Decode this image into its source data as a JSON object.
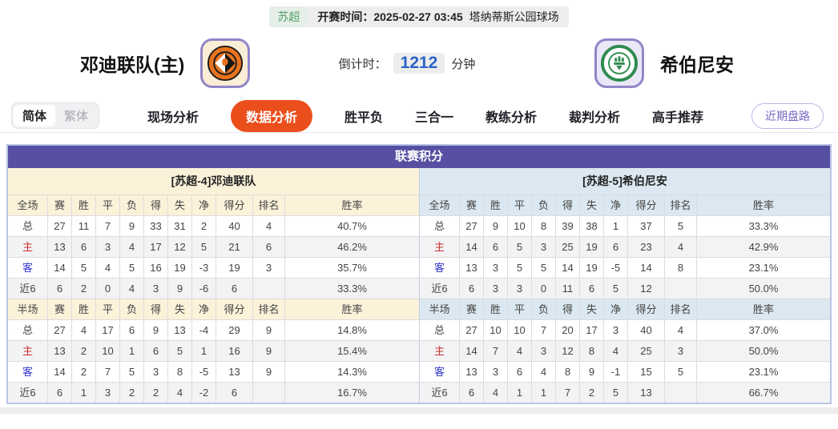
{
  "meta_bar": {
    "league": "苏超",
    "kickoff_label": "开赛时间：",
    "kickoff_time": "2025-02-27 03:45",
    "venue": "塔纳蒂斯公园球场"
  },
  "header": {
    "home_team": "邓迪联队(主)",
    "away_team": "希伯尼安",
    "countdown_label": "倒计时：",
    "countdown_value": "1212",
    "countdown_unit": "分钟"
  },
  "nav": {
    "lang_simplified": "简体",
    "lang_traditional": "繁体",
    "tabs": [
      {
        "label": "现场分析",
        "active": false
      },
      {
        "label": "数据分析",
        "active": true
      },
      {
        "label": "胜平负",
        "active": false
      },
      {
        "label": "三合一",
        "active": false
      },
      {
        "label": "教练分析",
        "active": false
      },
      {
        "label": "裁判分析",
        "active": false
      },
      {
        "label": "高手推荐",
        "active": false
      }
    ],
    "recent_button": "近期盘路"
  },
  "table": {
    "title": "联赛积分",
    "columns_full": [
      "全场",
      "赛",
      "胜",
      "平",
      "负",
      "得",
      "失",
      "净",
      "得分",
      "排名",
      "胜率"
    ],
    "columns_half": [
      "半场",
      "赛",
      "胜",
      "平",
      "负",
      "得",
      "失",
      "净",
      "得分",
      "排名",
      "胜率"
    ],
    "home": {
      "header": "[苏超-4]邓迪联队",
      "full": [
        {
          "label": "总",
          "type": "total",
          "cells": [
            "27",
            "11",
            "7",
            "9",
            "33",
            "31",
            "2",
            "40",
            "4",
            "40.7%"
          ]
        },
        {
          "label": "主",
          "type": "home",
          "cells": [
            "13",
            "6",
            "3",
            "4",
            "17",
            "12",
            "5",
            "21",
            "6",
            "46.2%"
          ]
        },
        {
          "label": "客",
          "type": "away",
          "cells": [
            "14",
            "5",
            "4",
            "5",
            "16",
            "19",
            "-3",
            "19",
            "3",
            "35.7%"
          ]
        },
        {
          "label": "近6",
          "type": "recent",
          "cells": [
            "6",
            "2",
            "0",
            "4",
            "3",
            "9",
            "-6",
            "6",
            "",
            "33.3%"
          ]
        }
      ],
      "half": [
        {
          "label": "总",
          "type": "total",
          "cells": [
            "27",
            "4",
            "17",
            "6",
            "9",
            "13",
            "-4",
            "29",
            "9",
            "14.8%"
          ]
        },
        {
          "label": "主",
          "type": "home",
          "cells": [
            "13",
            "2",
            "10",
            "1",
            "6",
            "5",
            "1",
            "16",
            "9",
            "15.4%"
          ]
        },
        {
          "label": "客",
          "type": "away",
          "cells": [
            "14",
            "2",
            "7",
            "5",
            "3",
            "8",
            "-5",
            "13",
            "9",
            "14.3%"
          ]
        },
        {
          "label": "近6",
          "type": "recent",
          "cells": [
            "6",
            "1",
            "3",
            "2",
            "2",
            "4",
            "-2",
            "6",
            "",
            "16.7%"
          ]
        }
      ]
    },
    "away": {
      "header": "[苏超-5]希伯尼安",
      "full": [
        {
          "label": "总",
          "type": "total",
          "cells": [
            "27",
            "9",
            "10",
            "8",
            "39",
            "38",
            "1",
            "37",
            "5",
            "33.3%"
          ]
        },
        {
          "label": "主",
          "type": "home",
          "cells": [
            "14",
            "6",
            "5",
            "3",
            "25",
            "19",
            "6",
            "23",
            "4",
            "42.9%"
          ]
        },
        {
          "label": "客",
          "type": "away",
          "cells": [
            "13",
            "3",
            "5",
            "5",
            "14",
            "19",
            "-5",
            "14",
            "8",
            "23.1%"
          ]
        },
        {
          "label": "近6",
          "type": "recent",
          "cells": [
            "6",
            "3",
            "3",
            "0",
            "11",
            "6",
            "5",
            "12",
            "",
            "50.0%"
          ]
        }
      ],
      "half": [
        {
          "label": "总",
          "type": "total",
          "cells": [
            "27",
            "10",
            "10",
            "7",
            "20",
            "17",
            "3",
            "40",
            "4",
            "37.0%"
          ]
        },
        {
          "label": "主",
          "type": "home",
          "cells": [
            "14",
            "7",
            "4",
            "3",
            "12",
            "8",
            "4",
            "25",
            "3",
            "50.0%"
          ]
        },
        {
          "label": "客",
          "type": "away",
          "cells": [
            "13",
            "3",
            "6",
            "4",
            "8",
            "9",
            "-1",
            "15",
            "5",
            "23.1%"
          ]
        },
        {
          "label": "近6",
          "type": "recent",
          "cells": [
            "6",
            "4",
            "1",
            "1",
            "7",
            "2",
            "5",
            "13",
            "",
            "66.7%"
          ]
        }
      ]
    }
  },
  "colors": {
    "accent_purple": "#5750a2",
    "active_tab_orange": "#ea4e1b",
    "countdown_blue": "#2a63c8",
    "home_row_red": "#cc2f2f",
    "away_row_blue": "#3038cf",
    "league_green": "#55a06c",
    "home_theme_cream": "#fcf2da",
    "away_theme_blue": "#dbe8f1"
  }
}
